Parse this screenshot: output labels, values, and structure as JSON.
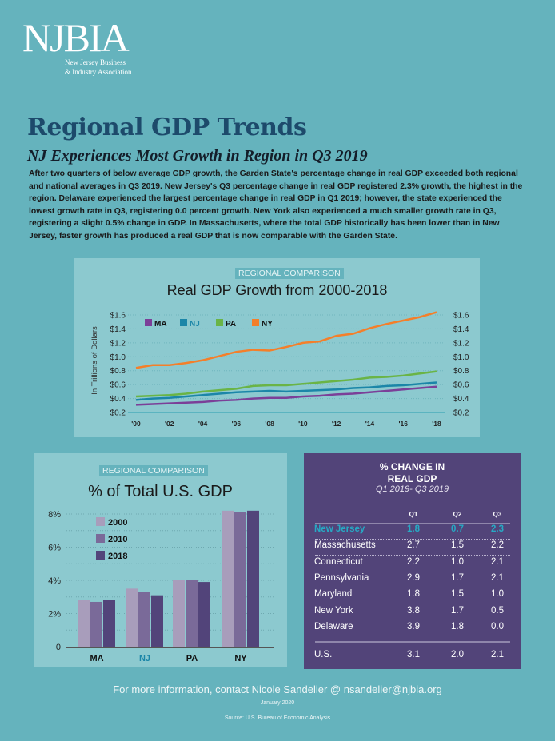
{
  "logo": {
    "mark": "NJBIA",
    "line1": "New Jersey Business",
    "line2": "& Industry Association"
  },
  "title": "Regional GDP Trends",
  "subtitle": "NJ Experiences Most Growth in Region in Q3 2019",
  "intro": "After two quarters of below average GDP growth, the Garden State's percentage change in real GDP exceeded both regional and national averages in Q3 2019.  New Jersey's Q3 percentage change in real GDP registered 2.3% growth, the highest in the region.  Delaware experienced the largest percentage change in real GDP in Q1 2019; however, the state experienced the lowest growth rate in Q3, registering 0.0 percent growth.  New York also experienced a much smaller growth rate in Q3, registering a slight 0.5% change in GDP.   In Massachusetts, where the total GDP historically has been lower than in New Jersey, faster growth has produced a real GDP that is now comparable with the Garden State.",
  "colors": {
    "background": "#65b3bd",
    "panel": "#8cc9cf",
    "title": "#1d4a6b",
    "table_bg": "#524479",
    "nj_highlight": "#27a9c4"
  },
  "chart_data": [
    {
      "type": "line",
      "badge": "REGIONAL COMPARISON",
      "title": "Real GDP Growth from 2000-2018",
      "ylabel": "In Trillions of Dollars",
      "ylim": [
        0.2,
        1.6
      ],
      "yticks": [
        "$0.2",
        "$0.4",
        "$0.6",
        "$0.8",
        "$1.0",
        "$1.2",
        "$1.4",
        "$1.6"
      ],
      "xticks": [
        "'00",
        "'02",
        "'04",
        "'06",
        "'08",
        "'10",
        "'12",
        "'14",
        "'16",
        "'18"
      ],
      "x": [
        2000,
        2001,
        2002,
        2003,
        2004,
        2005,
        2006,
        2007,
        2008,
        2009,
        2010,
        2011,
        2012,
        2013,
        2014,
        2015,
        2016,
        2017,
        2018
      ],
      "legend": "top-left",
      "grid": true,
      "series": [
        {
          "name": "MA",
          "color": "#7b3f98",
          "values": [
            0.31,
            0.32,
            0.33,
            0.34,
            0.35,
            0.37,
            0.38,
            0.4,
            0.41,
            0.41,
            0.43,
            0.44,
            0.46,
            0.47,
            0.49,
            0.51,
            0.53,
            0.55,
            0.57
          ]
        },
        {
          "name": "NJ",
          "color": "#1b86a8",
          "values": [
            0.38,
            0.4,
            0.41,
            0.43,
            0.45,
            0.47,
            0.49,
            0.5,
            0.51,
            0.5,
            0.51,
            0.52,
            0.53,
            0.55,
            0.56,
            0.58,
            0.59,
            0.61,
            0.63
          ]
        },
        {
          "name": "PA",
          "color": "#6ab446",
          "values": [
            0.43,
            0.44,
            0.45,
            0.47,
            0.5,
            0.52,
            0.54,
            0.58,
            0.59,
            0.59,
            0.61,
            0.63,
            0.65,
            0.67,
            0.7,
            0.71,
            0.73,
            0.76,
            0.79
          ]
        },
        {
          "name": "NY",
          "color": "#f47f2a",
          "values": [
            0.84,
            0.88,
            0.88,
            0.91,
            0.95,
            1.01,
            1.07,
            1.1,
            1.09,
            1.14,
            1.2,
            1.22,
            1.3,
            1.33,
            1.41,
            1.47,
            1.52,
            1.57,
            1.64
          ]
        }
      ]
    },
    {
      "type": "bar",
      "badge": "REGIONAL COMPARISON",
      "title": "% of Total U.S. GDP",
      "ylim": [
        0,
        8
      ],
      "yticks": [
        "0",
        "2%",
        "4%",
        "6%",
        "8%"
      ],
      "categories": [
        "MA",
        "NJ",
        "PA",
        "NY"
      ],
      "legend": "top-left",
      "grid": true,
      "series": [
        {
          "name": "2000",
          "color": "#a89dbb",
          "values": [
            2.8,
            3.5,
            4.0,
            8.2
          ]
        },
        {
          "name": "2010",
          "color": "#7a6a99",
          "values": [
            2.7,
            3.3,
            4.0,
            8.1
          ]
        },
        {
          "name": "2018",
          "color": "#52447a",
          "values": [
            2.8,
            3.1,
            3.9,
            8.2
          ]
        }
      ]
    }
  ],
  "table": {
    "title1": "% CHANGE IN",
    "title2": "REAL GDP",
    "period": "Q1 2019- Q3 2019",
    "columns": [
      "Q1",
      "Q2",
      "Q3"
    ],
    "rows": [
      {
        "name": "New Jersey",
        "q1": "1.8",
        "q2": "0.7",
        "q3": "2.3"
      },
      {
        "name": "Massachusetts",
        "q1": "2.7",
        "q2": "1.5",
        "q3": "2.2"
      },
      {
        "name": "Connecticut",
        "q1": "2.2",
        "q2": "1.0",
        "q3": "2.1"
      },
      {
        "name": "Pennsylvania",
        "q1": "2.9",
        "q2": "1.7",
        "q3": "2.1"
      },
      {
        "name": "Maryland",
        "q1": "1.8",
        "q2": "1.5",
        "q3": "1.0"
      },
      {
        "name": "New York",
        "q1": "3.8",
        "q2": "1.7",
        "q3": "0.5"
      },
      {
        "name": "Delaware",
        "q1": "3.9",
        "q2": "1.8",
        "q3": "0.0"
      }
    ],
    "total": {
      "name": "U.S.",
      "q1": "3.1",
      "q2": "2.0",
      "q3": "2.1"
    }
  },
  "footer": {
    "contact": "For more information, contact Nicole Sandelier @ nsandelier@njbia.org",
    "date": "January 2020",
    "source": "Source: U.S. Bureau of Economic Analysis"
  }
}
